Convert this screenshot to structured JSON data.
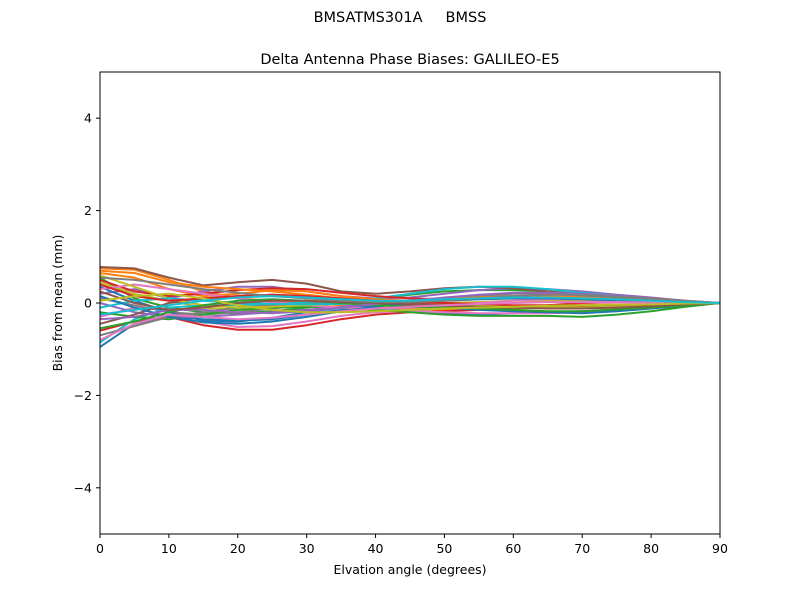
{
  "suptitle": "BMSATMS301A     BMSS",
  "chart_data": {
    "type": "line",
    "title": "Delta Antenna Phase Biases: GALILEO-E5",
    "xlabel": "Elvation angle (degrees)",
    "ylabel": "Bias from mean (mm)",
    "xlim": [
      0,
      90
    ],
    "ylim": [
      -5,
      5
    ],
    "xticks": [
      0,
      10,
      20,
      30,
      40,
      50,
      60,
      70,
      80,
      90
    ],
    "yticks": [
      -4,
      -2,
      0,
      2,
      4
    ],
    "ytick_labels": [
      "−4",
      "−2",
      "0",
      "2",
      "4"
    ],
    "grid": false,
    "x": [
      0,
      5,
      10,
      15,
      20,
      25,
      30,
      35,
      40,
      45,
      50,
      55,
      60,
      65,
      70,
      75,
      80,
      85,
      90
    ],
    "colors": [
      "#1f77b4",
      "#ff7f0e",
      "#2ca02c",
      "#d62728",
      "#9467bd",
      "#8c564b",
      "#e377c2",
      "#7f7f7f",
      "#bcbd22",
      "#17becf"
    ],
    "series": [
      {
        "values": [
          -0.95,
          -0.45,
          -0.3,
          -0.35,
          -0.38,
          -0.35,
          -0.25,
          -0.15,
          -0.1,
          -0.15,
          -0.22,
          -0.25,
          -0.22,
          -0.2,
          -0.18,
          -0.14,
          -0.09,
          -0.05,
          0.0
        ]
      },
      {
        "values": [
          0.75,
          0.72,
          0.5,
          0.25,
          0.1,
          0.05,
          0.0,
          -0.05,
          -0.1,
          -0.12,
          -0.15,
          -0.15,
          -0.12,
          -0.1,
          -0.08,
          -0.05,
          -0.03,
          -0.02,
          0.0
        ]
      },
      {
        "values": [
          0.55,
          0.1,
          -0.1,
          -0.2,
          -0.22,
          -0.18,
          -0.1,
          0.0,
          0.1,
          0.18,
          0.25,
          0.28,
          0.28,
          0.25,
          0.2,
          0.14,
          0.08,
          0.04,
          0.0
        ]
      },
      {
        "values": [
          -0.6,
          -0.4,
          -0.3,
          -0.48,
          -0.58,
          -0.58,
          -0.48,
          -0.35,
          -0.25,
          -0.2,
          -0.18,
          -0.15,
          -0.1,
          -0.05,
          0.0,
          0.02,
          0.02,
          0.01,
          0.0
        ]
      },
      {
        "values": [
          0.2,
          0.3,
          0.1,
          0.25,
          0.35,
          0.35,
          0.25,
          0.15,
          0.1,
          0.12,
          0.2,
          0.28,
          0.32,
          0.3,
          0.25,
          0.18,
          0.12,
          0.05,
          0.0
        ]
      },
      {
        "values": [
          0.78,
          0.75,
          0.55,
          0.38,
          0.45,
          0.5,
          0.42,
          0.25,
          0.2,
          0.25,
          0.32,
          0.35,
          0.32,
          0.25,
          0.18,
          0.12,
          0.08,
          0.04,
          0.0
        ]
      },
      {
        "values": [
          -0.3,
          -0.1,
          -0.15,
          -0.4,
          -0.52,
          -0.5,
          -0.4,
          -0.28,
          -0.2,
          -0.18,
          -0.2,
          -0.22,
          -0.22,
          -0.22,
          -0.2,
          -0.15,
          -0.1,
          -0.05,
          0.0
        ]
      },
      {
        "values": [
          0.1,
          -0.05,
          -0.2,
          -0.25,
          -0.2,
          -0.12,
          -0.05,
          0.0,
          0.02,
          0.05,
          0.08,
          0.1,
          0.1,
          0.08,
          0.05,
          0.03,
          0.02,
          0.01,
          0.0
        ]
      },
      {
        "values": [
          0.45,
          0.2,
          0.05,
          -0.1,
          -0.15,
          -0.1,
          0.0,
          0.05,
          0.05,
          0.02,
          0.0,
          0.02,
          0.05,
          0.05,
          0.04,
          0.03,
          0.02,
          0.01,
          0.0
        ]
      },
      {
        "values": [
          -0.85,
          -0.35,
          -0.1,
          -0.05,
          -0.05,
          -0.02,
          0.02,
          0.05,
          0.1,
          0.2,
          0.3,
          0.35,
          0.35,
          0.3,
          0.22,
          0.15,
          0.08,
          0.04,
          0.0
        ]
      },
      {
        "values": [
          0.35,
          0.05,
          -0.2,
          -0.38,
          -0.4,
          -0.32,
          -0.2,
          -0.1,
          -0.05,
          -0.05,
          -0.1,
          -0.15,
          -0.18,
          -0.2,
          -0.22,
          -0.18,
          -0.12,
          -0.06,
          0.0
        ]
      },
      {
        "values": [
          0.65,
          0.55,
          0.3,
          0.15,
          0.2,
          0.28,
          0.25,
          0.15,
          0.08,
          0.05,
          0.05,
          0.08,
          0.1,
          0.1,
          0.08,
          0.06,
          0.04,
          0.02,
          0.0
        ]
      },
      {
        "values": [
          -0.2,
          -0.3,
          -0.35,
          -0.25,
          -0.15,
          -0.1,
          -0.08,
          -0.1,
          -0.15,
          -0.2,
          -0.25,
          -0.28,
          -0.28,
          -0.28,
          -0.3,
          -0.25,
          -0.18,
          -0.08,
          0.0
        ]
      },
      {
        "values": [
          0.5,
          0.25,
          0.15,
          0.2,
          0.28,
          0.32,
          0.3,
          0.22,
          0.15,
          0.1,
          0.08,
          0.1,
          0.12,
          0.12,
          0.1,
          0.08,
          0.05,
          0.02,
          0.0
        ]
      },
      {
        "values": [
          0.0,
          -0.2,
          -0.3,
          -0.3,
          -0.25,
          -0.2,
          -0.15,
          -0.08,
          0.0,
          0.05,
          0.1,
          0.15,
          0.15,
          0.12,
          0.08,
          0.05,
          0.03,
          0.01,
          0.0
        ]
      },
      {
        "values": [
          -0.45,
          -0.25,
          0.0,
          0.1,
          0.15,
          0.18,
          0.15,
          0.08,
          0.0,
          -0.05,
          -0.08,
          -0.1,
          -0.1,
          -0.1,
          -0.08,
          -0.06,
          -0.04,
          -0.02,
          0.0
        ]
      },
      {
        "values": [
          0.3,
          0.4,
          0.3,
          0.2,
          0.1,
          0.02,
          -0.05,
          -0.1,
          -0.12,
          -0.1,
          -0.05,
          0.0,
          0.05,
          0.08,
          0.08,
          0.06,
          0.04,
          0.02,
          0.0
        ]
      },
      {
        "values": [
          -0.7,
          -0.5,
          -0.3,
          -0.2,
          -0.1,
          -0.05,
          -0.02,
          0.0,
          0.02,
          0.05,
          0.1,
          0.15,
          0.2,
          0.2,
          0.15,
          0.1,
          0.06,
          0.03,
          0.0
        ]
      },
      {
        "values": [
          0.6,
          0.35,
          0.1,
          -0.05,
          -0.1,
          -0.08,
          -0.05,
          -0.02,
          0.0,
          0.0,
          -0.02,
          -0.05,
          -0.08,
          -0.1,
          -0.1,
          -0.08,
          -0.05,
          -0.02,
          0.0
        ]
      },
      {
        "values": [
          -0.1,
          0.05,
          0.1,
          0.05,
          0.0,
          -0.02,
          -0.03,
          -0.02,
          0.0,
          0.03,
          0.08,
          0.12,
          0.15,
          0.15,
          0.12,
          0.08,
          0.05,
          0.02,
          0.0
        ]
      },
      {
        "values": [
          0.15,
          -0.1,
          -0.3,
          -0.42,
          -0.45,
          -0.4,
          -0.3,
          -0.18,
          -0.08,
          0.0,
          0.05,
          0.08,
          0.1,
          0.1,
          0.08,
          0.06,
          0.04,
          0.02,
          0.0
        ]
      },
      {
        "values": [
          0.7,
          0.65,
          0.45,
          0.35,
          0.3,
          0.25,
          0.18,
          0.1,
          0.05,
          0.05,
          0.08,
          0.12,
          0.15,
          0.15,
          0.12,
          0.08,
          0.05,
          0.02,
          0.0
        ]
      },
      {
        "values": [
          -0.55,
          -0.4,
          -0.2,
          -0.05,
          0.05,
          0.08,
          0.05,
          0.0,
          -0.05,
          -0.08,
          -0.1,
          -0.12,
          -0.15,
          -0.18,
          -0.18,
          -0.14,
          -0.1,
          -0.05,
          0.0
        ]
      },
      {
        "values": [
          0.4,
          0.15,
          0.05,
          0.1,
          0.15,
          0.18,
          0.15,
          0.1,
          0.05,
          0.02,
          0.0,
          -0.02,
          -0.05,
          -0.05,
          -0.05,
          -0.04,
          -0.03,
          -0.01,
          0.0
        ]
      },
      {
        "values": [
          -0.35,
          -0.3,
          -0.15,
          -0.15,
          -0.2,
          -0.22,
          -0.18,
          -0.1,
          -0.02,
          0.05,
          0.12,
          0.18,
          0.22,
          0.22,
          0.2,
          0.15,
          0.1,
          0.05,
          0.0
        ]
      },
      {
        "values": [
          0.25,
          0.0,
          -0.15,
          -0.1,
          0.0,
          0.05,
          0.05,
          0.02,
          0.0,
          -0.02,
          -0.05,
          -0.08,
          -0.1,
          -0.12,
          -0.12,
          -0.1,
          -0.07,
          -0.03,
          0.0
        ]
      },
      {
        "values": [
          -0.8,
          -0.45,
          -0.25,
          -0.3,
          -0.35,
          -0.32,
          -0.25,
          -0.18,
          -0.12,
          -0.08,
          -0.05,
          -0.02,
          0.0,
          0.02,
          0.02,
          0.02,
          0.01,
          0.01,
          0.0
        ]
      },
      {
        "values": [
          0.55,
          0.5,
          0.4,
          0.3,
          0.22,
          0.15,
          0.1,
          0.05,
          0.02,
          0.02,
          0.05,
          0.1,
          0.15,
          0.18,
          0.18,
          0.14,
          0.1,
          0.05,
          0.0
        ]
      },
      {
        "values": [
          0.05,
          0.15,
          0.2,
          0.1,
          -0.05,
          -0.15,
          -0.2,
          -0.2,
          -0.18,
          -0.15,
          -0.12,
          -0.1,
          -0.08,
          -0.06,
          -0.05,
          -0.04,
          -0.03,
          -0.01,
          0.0
        ]
      },
      {
        "values": [
          -0.25,
          -0.15,
          -0.05,
          0.05,
          0.12,
          0.15,
          0.12,
          0.08,
          0.05,
          0.05,
          0.08,
          0.1,
          0.12,
          0.12,
          0.1,
          0.08,
          0.05,
          0.02,
          0.0
        ]
      }
    ]
  }
}
